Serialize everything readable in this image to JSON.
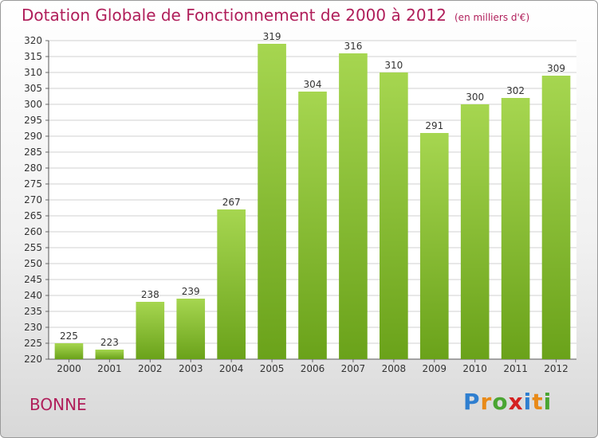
{
  "header": {
    "title": "Dotation Globale de Fonctionnement de 2000 à 2012",
    "unit": "(en milliers d'€)"
  },
  "commune": "BONNE",
  "logo": {
    "text": "Proxiti",
    "letter_colors": [
      "#2f7fd0",
      "#e88a18",
      "#4aa532",
      "#d42020",
      "#2f7fd0",
      "#e88a18",
      "#4aa532"
    ]
  },
  "colors": {
    "title": "#b01e5a",
    "bar_top": "#a6d650",
    "bar_bottom": "#6aa21a",
    "grid": "#d0d0d0"
  },
  "chart_data": {
    "type": "bar",
    "categories": [
      "2000",
      "2001",
      "2002",
      "2003",
      "2004",
      "2005",
      "2006",
      "2007",
      "2008",
      "2009",
      "2010",
      "2011",
      "2012"
    ],
    "values": [
      225,
      223,
      238,
      239,
      267,
      319,
      304,
      316,
      310,
      291,
      300,
      302,
      309
    ],
    "ylim": [
      220,
      320
    ],
    "ytick_step": 5,
    "grid": true,
    "data_labels": true
  }
}
